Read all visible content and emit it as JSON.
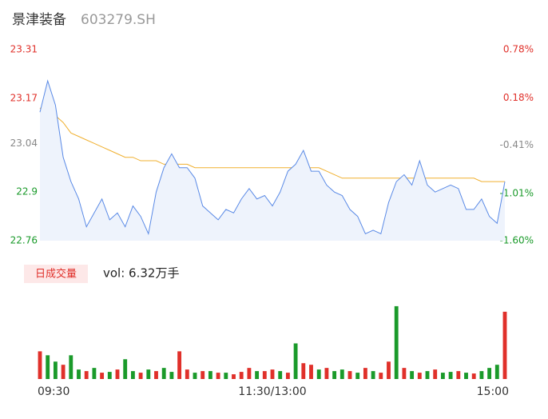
{
  "chart_data": [
    {
      "type": "line",
      "title": "景津装备",
      "subtitle": "603279.SH",
      "ylim": [
        22.76,
        23.31
      ],
      "yticks": [
        23.31,
        23.17,
        23.04,
        22.9,
        22.76
      ],
      "y2lim": [
        -1.6,
        0.78
      ],
      "y2ticks": [
        {
          "value": 0.78,
          "label": "0.78%"
        },
        {
          "value": 0.18,
          "label": "0.18%"
        },
        {
          "value": -0.41,
          "label": "-0.41%"
        },
        {
          "value": -1.01,
          "label": "-1.01%"
        },
        {
          "value": -1.6,
          "label": "-1.60%"
        }
      ],
      "tick_colors": [
        "#e0302a",
        "#e0302a",
        "#888888",
        "#1a9a2a",
        "#1a9a2a"
      ],
      "series": [
        {
          "color": "#5a8ae6",
          "values": [
            23.13,
            23.22,
            23.15,
            23.0,
            22.93,
            22.88,
            22.8,
            22.84,
            22.88,
            22.82,
            22.84,
            22.8,
            22.86,
            22.83,
            22.78,
            22.9,
            22.97,
            23.01,
            22.97,
            22.97,
            22.94,
            22.86,
            22.84,
            22.82,
            22.85,
            22.84,
            22.88,
            22.91,
            22.88,
            22.89,
            22.86,
            22.9,
            22.96,
            22.98,
            23.02,
            22.96,
            22.96,
            22.92,
            22.9,
            22.89,
            22.85,
            22.83,
            22.78,
            22.79,
            22.78,
            22.87,
            22.93,
            22.95,
            22.92,
            22.99,
            22.92,
            22.9,
            22.91,
            22.92,
            22.91,
            22.85,
            22.85,
            22.88,
            22.83,
            22.81,
            22.93
          ]
        },
        {
          "color": "#f0b030",
          "values": [
            23.14,
            23.16,
            23.12,
            23.1,
            23.07,
            23.06,
            23.05,
            23.04,
            23.03,
            23.02,
            23.01,
            23.0,
            23.0,
            22.99,
            22.99,
            22.99,
            22.98,
            22.98,
            22.98,
            22.98,
            22.97,
            22.97,
            22.97,
            22.97,
            22.97,
            22.97,
            22.97,
            22.97,
            22.97,
            22.97,
            22.97,
            22.97,
            22.97,
            22.97,
            22.97,
            22.97,
            22.97,
            22.96,
            22.95,
            22.94,
            22.94,
            22.94,
            22.94,
            22.94,
            22.94,
            22.94,
            22.94,
            22.94,
            22.94,
            22.94,
            22.94,
            22.94,
            22.94,
            22.94,
            22.94,
            22.94,
            22.94,
            22.93,
            22.93,
            22.93,
            22.93
          ]
        }
      ]
    },
    {
      "type": "bar",
      "title": "日成交量",
      "subtitle": "vol: 6.32万手",
      "ylim": [
        0,
        100
      ],
      "categories": [
        "09:30",
        null,
        null,
        null,
        null,
        null,
        null,
        null,
        null,
        null,
        null,
        null,
        null,
        null,
        null,
        null,
        null,
        null,
        null,
        null,
        null,
        null,
        null,
        null,
        null,
        null,
        null,
        null,
        null,
        null,
        "11:30/13:00",
        null,
        null,
        null,
        null,
        null,
        null,
        null,
        null,
        null,
        null,
        null,
        null,
        null,
        null,
        null,
        null,
        null,
        null,
        null,
        null,
        null,
        null,
        null,
        null,
        null,
        null,
        null,
        null,
        null,
        "15:00"
      ],
      "values": [
        35,
        30,
        22,
        18,
        30,
        12,
        10,
        14,
        8,
        9,
        12,
        25,
        10,
        8,
        12,
        10,
        14,
        9,
        35,
        12,
        8,
        10,
        10,
        8,
        8,
        6,
        9,
        14,
        10,
        10,
        12,
        10,
        8,
        45,
        20,
        18,
        12,
        14,
        10,
        12,
        10,
        8,
        14,
        10,
        8,
        22,
        92,
        14,
        10,
        8,
        10,
        12,
        8,
        9,
        10,
        8,
        7,
        10,
        14,
        18,
        85
      ],
      "colors": [
        "#e0302a",
        "#1a9a2a",
        "#1a9a2a",
        "#e0302a",
        "#1a9a2a",
        "#1a9a2a",
        "#e0302a",
        "#1a9a2a",
        "#e0302a",
        "#1a9a2a",
        "#e0302a",
        "#1a9a2a",
        "#1a9a2a",
        "#e0302a",
        "#1a9a2a",
        "#e0302a",
        "#1a9a2a",
        "#1a9a2a",
        "#e0302a",
        "#e0302a",
        "#1a9a2a",
        "#e0302a",
        "#1a9a2a",
        "#e0302a",
        "#1a9a2a",
        "#e0302a",
        "#e0302a",
        "#e0302a",
        "#1a9a2a",
        "#e0302a",
        "#e0302a",
        "#1a9a2a",
        "#e0302a",
        "#1a9a2a",
        "#e0302a",
        "#e0302a",
        "#1a9a2a",
        "#e0302a",
        "#1a9a2a",
        "#1a9a2a",
        "#e0302a",
        "#1a9a2a",
        "#e0302a",
        "#1a9a2a",
        "#e0302a",
        "#e0302a",
        "#1a9a2a",
        "#e0302a",
        "#1a9a2a",
        "#e0302a",
        "#1a9a2a",
        "#e0302a",
        "#1a9a2a",
        "#1a9a2a",
        "#e0302a",
        "#1a9a2a",
        "#e0302a",
        "#1a9a2a",
        "#1a9a2a",
        "#1a9a2a",
        "#e0302a"
      ]
    }
  ]
}
